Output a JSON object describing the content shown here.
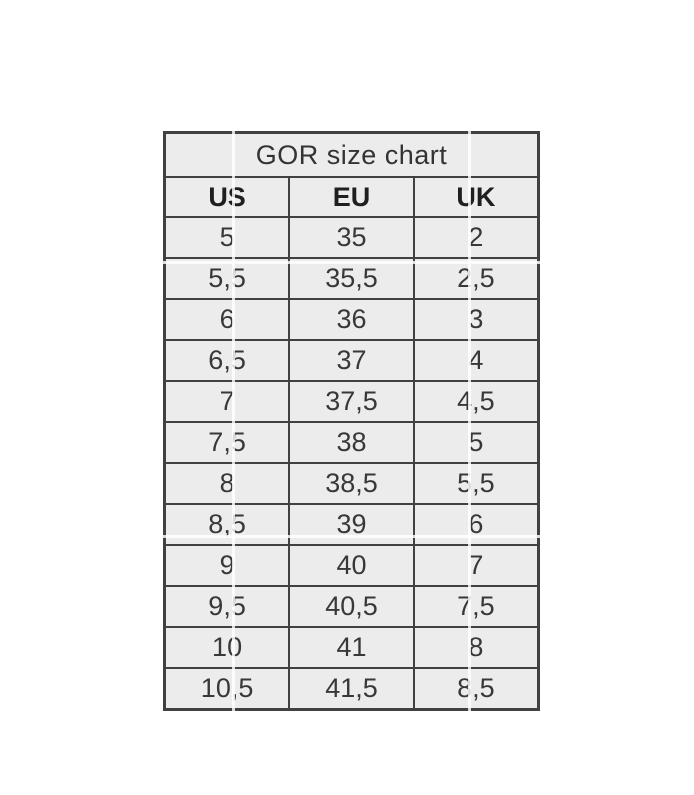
{
  "page": {
    "background_color": "#ffffff"
  },
  "chart_data": {
    "type": "table",
    "title": "GOR size chart",
    "columns": [
      "US",
      "EU",
      "UK"
    ],
    "rows": [
      [
        "5",
        "35",
        "2"
      ],
      [
        "5,5",
        "35,5",
        "2,5"
      ],
      [
        "6",
        "36",
        "3"
      ],
      [
        "6,5",
        "37",
        "4"
      ],
      [
        "7",
        "37,5",
        "4,5"
      ],
      [
        "7,5",
        "38",
        "5"
      ],
      [
        "8",
        "38,5",
        "5,5"
      ],
      [
        "8,5",
        "39",
        "6"
      ],
      [
        "9",
        "40",
        "7"
      ],
      [
        "9,5",
        "40,5",
        "7,5"
      ],
      [
        "10",
        "41",
        "8"
      ],
      [
        "10,5",
        "41,5",
        "8,5"
      ]
    ],
    "colors": {
      "cell_background": "#ececec",
      "border": "#414141",
      "text": "#383838"
    }
  }
}
